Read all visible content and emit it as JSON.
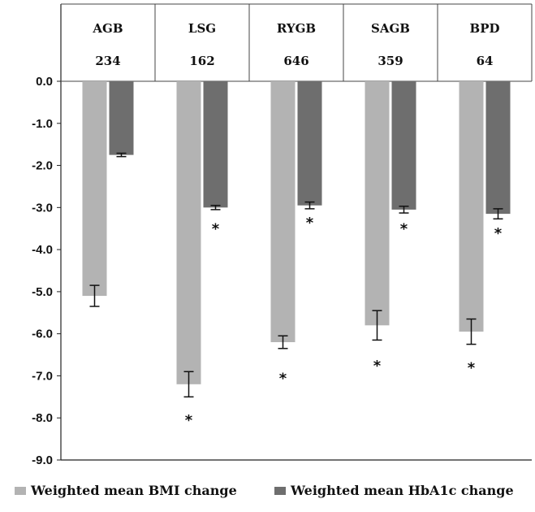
{
  "chart_data": {
    "type": "bar",
    "categories": [
      "AGB",
      "LSG",
      "RYGB",
      "SAGB",
      "BPD"
    ],
    "category_counts": [
      "234",
      "162",
      "646",
      "359",
      "64"
    ],
    "series": [
      {
        "name": "Weighted mean BMI change",
        "color": "#b3b3b3",
        "values": [
          -5.1,
          -7.2,
          -6.2,
          -5.8,
          -5.95
        ],
        "error": [
          0.25,
          0.3,
          0.15,
          0.35,
          0.3
        ],
        "significant": [
          false,
          true,
          true,
          true,
          true
        ],
        "marker_at": [
          null,
          -8.0,
          -7.0,
          -6.7,
          -6.75
        ]
      },
      {
        "name": "Weighted mean HbA1c change",
        "color": "#6e6e6e",
        "values": [
          -1.75,
          -3.0,
          -2.95,
          -3.05,
          -3.15
        ],
        "error": [
          0.04,
          0.05,
          0.08,
          0.08,
          0.12
        ],
        "significant": [
          false,
          true,
          true,
          true,
          true
        ],
        "marker_at": [
          null,
          -3.45,
          -3.3,
          -3.45,
          -3.55
        ]
      }
    ],
    "significance_marker": "*",
    "ylim": [
      -9.0,
      0.0
    ],
    "yticks": [
      "0.0",
      "-1.0",
      "-2.0",
      "-3.0",
      "-4.0",
      "-5.0",
      "-6.0",
      "-7.0",
      "-8.0",
      "-9.0"
    ],
    "grid": false,
    "legend_position": "bottom",
    "title": "",
    "xlabel": "",
    "ylabel": ""
  }
}
